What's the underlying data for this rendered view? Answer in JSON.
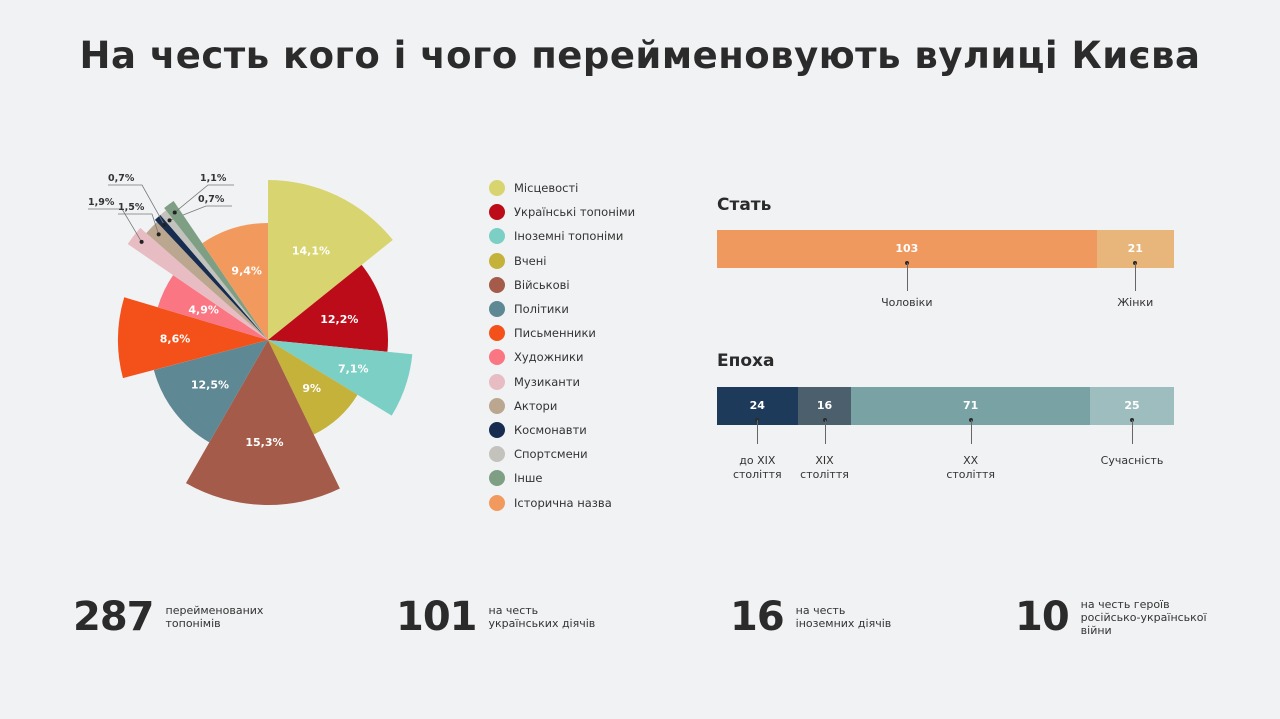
{
  "title": "На честь кого і чого перейменовують вулиці Києва",
  "chart_data": [
    {
      "type": "pie",
      "title": "",
      "categories": [
        "Місцевості",
        "Українські топоніми",
        "Іноземні топоніми",
        "Вчені",
        "Військові",
        "Політики",
        "Письменники",
        "Художники",
        "Музиканти",
        "Актори",
        "Космонавти",
        "Спортсмени",
        "Інше",
        "Історична назва"
      ],
      "values": [
        14.1,
        12.2,
        7.1,
        9,
        15.3,
        12.5,
        8.6,
        4.9,
        1.9,
        1.5,
        0.7,
        0.7,
        1.1,
        9.4
      ],
      "labels": [
        "14,1%",
        "12,2%",
        "7,1%",
        "9%",
        "15,3%",
        "12,5%",
        "8,6%",
        "4,9%",
        "1,9%",
        "1,5%",
        "0,7%",
        "0,7%",
        "1,1%",
        "9,4%"
      ],
      "colors": [
        "#d8d46f",
        "#bd0c19",
        "#7ccfc4",
        "#c4b23a",
        "#a45b49",
        "#5e8893",
        "#f4511a",
        "#fb7683",
        "#e8bcc3",
        "#bba78f",
        "#172c4f",
        "#c4c2bd",
        "#7f9f84",
        "#f29a5e"
      ],
      "legend_position": "right"
    },
    {
      "type": "bar",
      "title": "Стать",
      "orientation": "stacked-horizontal",
      "categories": [
        "Чоловіки",
        "Жінки"
      ],
      "values": [
        103,
        21
      ],
      "colors": [
        "#f0995f",
        "#e8b57a"
      ]
    },
    {
      "type": "bar",
      "title": "Епоха",
      "orientation": "stacked-horizontal",
      "categories": [
        "до XIX\nстоліття",
        "XIX\nстоліття",
        "XX\nстоліття",
        "Сучасність"
      ],
      "values": [
        24,
        16,
        71,
        25
      ],
      "colors": [
        "#1d3a5a",
        "#4b5f6c",
        "#79a2a5",
        "#9ebdbf"
      ]
    }
  ],
  "stats": [
    {
      "number": "287",
      "text": "перейменованих\nтопонімів"
    },
    {
      "number": "101",
      "text": "на честь\nукраїнських діячів"
    },
    {
      "number": "16",
      "text": "на честь\nіноземних діячів"
    },
    {
      "number": "10",
      "text": "на честь героїв\nросійсько-української\nвійни"
    }
  ]
}
